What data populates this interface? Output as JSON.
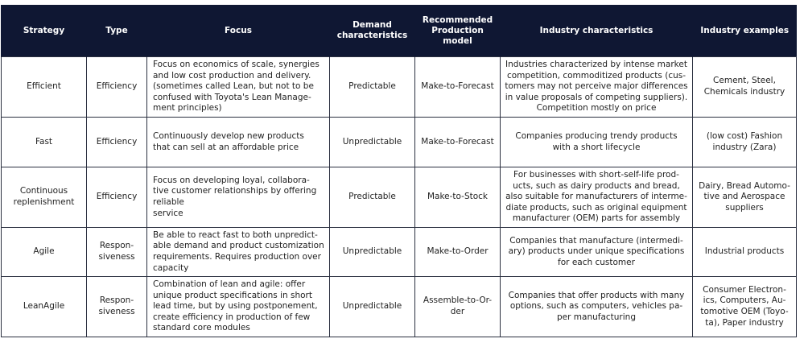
{
  "headers": [
    "Strategy",
    "Type",
    "Focus",
    "Demand\ncharacteristics",
    "Recommended\nProduction\nmodel",
    "Industry characteristics",
    "Industry examples"
  ],
  "rows": [
    {
      "strategy": "Efficient",
      "type": "Efficiency",
      "focus": "Focus on economics of scale, synergies\nand low cost production and delivery.\n(sometimes called Lean, but not to be\nconfused with Toyota's Lean Manage-\nment principles)",
      "demand": "Predictable",
      "model": "Make-to-Forecast",
      "industry": "Industries characterized by intense market\ncompetition, commoditized products (cus-\ntomers may not perceive major differences\nin value proposals of competing suppliers).\nCompetition mostly on price",
      "examples": "Cement, Steel,\nChemicals industry"
    },
    {
      "strategy": "Fast",
      "type": "Efficiency",
      "focus": "Continuously develop new products\nthat can sell at an affordable price",
      "demand": "Unpredictable",
      "model": "Make-to-Forecast",
      "industry": "Companies producing trendy products\nwith a short lifecycle",
      "examples": "(low cost) Fashion\nindustry (Zara)"
    },
    {
      "strategy": "Continuous\nreplenishment",
      "type": "Efficiency",
      "focus": "Focus on developing loyal, collabora-\ntive customer relationships by offering\nreliable\nservice",
      "demand": "Predictable",
      "model": "Make-to-Stock",
      "industry": "For businesses with short-self-life prod-\nucts, such as dairy products and bread,\nalso suitable for manufacturers of interme-\ndiate products, such as original equipment\nmanufacturer (OEM) parts for assembly",
      "examples": "Dairy, Bread Automo-\ntive and Aerospace\nsuppliers"
    },
    {
      "strategy": "Agile",
      "type": "Respon-\nsiveness",
      "focus": "Be able to react fast to both unpredict-\nable demand and product customization\nrequirements. Requires production over\ncapacity",
      "demand": "Unpredictable",
      "model": "Make-to-Order",
      "industry": "Companies that manufacture (intermedi-\nary) products under unique specifications\nfor each customer",
      "examples": "Industrial products"
    },
    {
      "strategy": "LeanAgile",
      "type": "Respon-\nsiveness",
      "focus": "Combination of lean and agile: offer\nunique product specifications in short\nlead time, but by using postponement,\ncreate efficiency in production of few\nstandard core modules",
      "demand": "Unpredictable",
      "model": "Assemble-to-Or-\nder",
      "industry": "Companies that offer products with many\noptions, such as computers, vehicles pa-\nper manufacturing",
      "examples": "Consumer Electron-\nics, Computers, Au-\ntomotive OEM (Toyo-\nta), Paper industry"
    }
  ],
  "colors": {
    "header_bg": "#0f1733",
    "border": "#2b3040"
  }
}
